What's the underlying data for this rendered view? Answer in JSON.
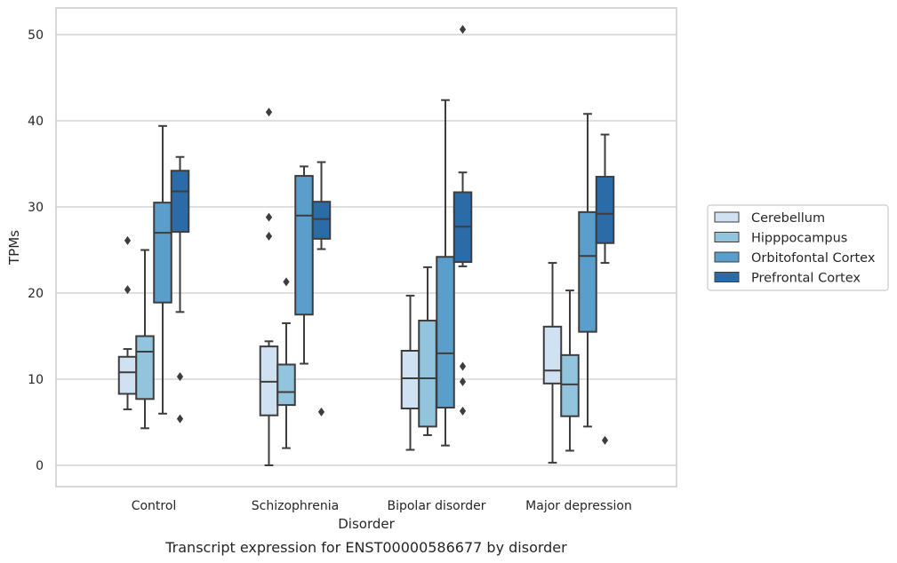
{
  "chart_data": {
    "type": "box",
    "title": "",
    "xlabel": "Disorder",
    "ylabel": "TPMs",
    "caption": "Transcript expression for ENST00000586677 by disorder",
    "ylim": [
      -2.5,
      53
    ],
    "yticks": [
      0,
      10,
      20,
      30,
      40,
      50
    ],
    "grid": "horizontal",
    "legend_position": "right",
    "categories": [
      "Control",
      "Schizophrenia",
      "Bipolar disorder",
      "Major depression"
    ],
    "series": [
      {
        "name": "Cerebellum",
        "color": "#d0e1f2",
        "boxes": [
          {
            "whislo": 6.5,
            "q1": 8.3,
            "med": 10.8,
            "q3": 12.6,
            "whishi": 13.5,
            "fliers": [
              20.4,
              26.1
            ]
          },
          {
            "whislo": 0.0,
            "q1": 5.8,
            "med": 9.7,
            "q3": 13.8,
            "whishi": 14.4,
            "fliers": [
              26.6,
              28.8,
              41.0
            ]
          },
          {
            "whislo": 1.8,
            "q1": 6.6,
            "med": 10.1,
            "q3": 13.3,
            "whishi": 19.7,
            "fliers": []
          },
          {
            "whislo": 0.3,
            "q1": 9.5,
            "med": 11.0,
            "q3": 16.1,
            "whishi": 23.5,
            "fliers": []
          }
        ]
      },
      {
        "name": "Hipppocampus",
        "color": "#93c4de",
        "boxes": [
          {
            "whislo": 4.3,
            "q1": 7.7,
            "med": 13.2,
            "q3": 15.0,
            "whishi": 25.0,
            "fliers": []
          },
          {
            "whislo": 2.0,
            "q1": 7.0,
            "med": 8.5,
            "q3": 11.7,
            "whishi": 16.5,
            "fliers": [
              21.3
            ]
          },
          {
            "whislo": 3.5,
            "q1": 4.5,
            "med": 10.1,
            "q3": 16.8,
            "whishi": 23.0,
            "fliers": []
          },
          {
            "whislo": 1.7,
            "q1": 5.7,
            "med": 9.4,
            "q3": 12.8,
            "whishi": 20.3,
            "fliers": []
          }
        ]
      },
      {
        "name": "Orbitofontal Cortex",
        "color": "#5a9ecc",
        "boxes": [
          {
            "whislo": 6.0,
            "q1": 18.9,
            "med": 27.0,
            "q3": 30.5,
            "whishi": 39.4,
            "fliers": []
          },
          {
            "whislo": 11.8,
            "q1": 17.5,
            "med": 29.0,
            "q3": 33.6,
            "whishi": 34.7,
            "fliers": []
          },
          {
            "whislo": 2.3,
            "q1": 6.7,
            "med": 13.0,
            "q3": 24.2,
            "whishi": 42.4,
            "fliers": []
          },
          {
            "whislo": 4.5,
            "q1": 15.5,
            "med": 24.3,
            "q3": 29.4,
            "whishi": 40.8,
            "fliers": []
          }
        ]
      },
      {
        "name": "Prefrontal Cortex",
        "color": "#2b6ba8",
        "boxes": [
          {
            "whislo": 17.8,
            "q1": 27.1,
            "med": 31.8,
            "q3": 34.2,
            "whishi": 35.8,
            "fliers": [
              5.4,
              10.3
            ]
          },
          {
            "whislo": 25.1,
            "q1": 26.3,
            "med": 28.6,
            "q3": 30.6,
            "whishi": 35.2,
            "fliers": [
              6.2
            ]
          },
          {
            "whislo": 23.1,
            "q1": 23.6,
            "med": 27.7,
            "q3": 31.7,
            "whishi": 34.0,
            "fliers": [
              6.3,
              9.7,
              11.5,
              50.6
            ]
          },
          {
            "whislo": 23.5,
            "q1": 25.8,
            "med": 29.2,
            "q3": 33.5,
            "whishi": 38.4,
            "fliers": [
              2.9
            ]
          }
        ]
      }
    ]
  }
}
